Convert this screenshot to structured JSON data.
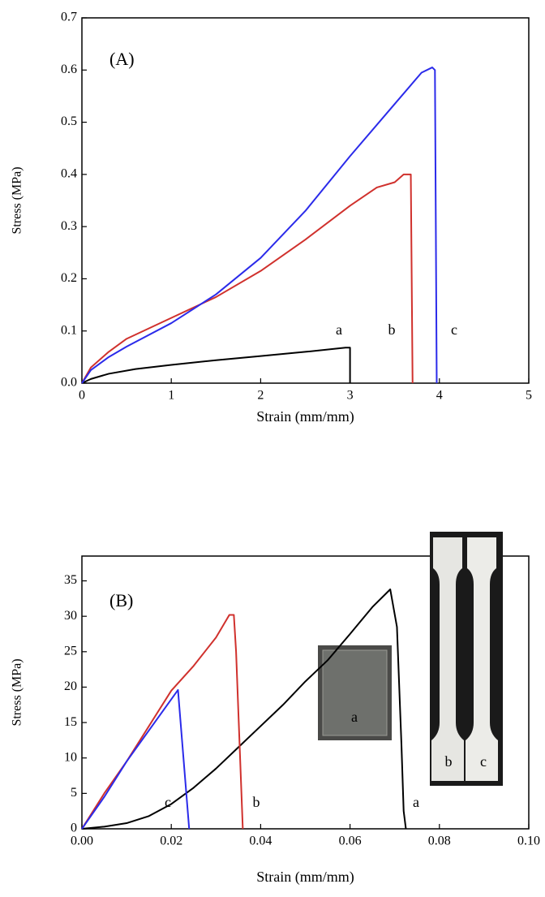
{
  "chart_data": [
    {
      "type": "line",
      "title": "(A)",
      "xlabel": "Strain (mm/mm)",
      "ylabel": "Stress (MPa)",
      "xlim": [
        0,
        5
      ],
      "ylim": [
        0,
        0.7
      ],
      "xticks": [
        0,
        1,
        2,
        3,
        4,
        5
      ],
      "yticks": [
        {
          "value": 0,
          "label": "0.0"
        },
        0.1,
        0.2,
        0.3,
        0.4,
        0.5,
        0.6,
        0.7
      ],
      "series": [
        {
          "name": "a",
          "color": "#000000",
          "x": [
            0,
            0.1,
            0.3,
            0.6,
            1,
            1.5,
            2,
            2.5,
            2.95,
            3.0,
            3.0
          ],
          "values": [
            0,
            0.008,
            0.018,
            0.027,
            0.035,
            0.044,
            0.052,
            0.06,
            0.068,
            0.068,
            0
          ]
        },
        {
          "name": "b",
          "color": "#d0312d",
          "x": [
            0,
            0.1,
            0.3,
            0.5,
            1,
            1.5,
            2,
            2.5,
            3,
            3.3,
            3.5,
            3.6,
            3.68,
            3.7
          ],
          "values": [
            0,
            0.03,
            0.06,
            0.085,
            0.125,
            0.165,
            0.215,
            0.275,
            0.34,
            0.375,
            0.385,
            0.4,
            0.4,
            0
          ]
        },
        {
          "name": "c",
          "color": "#2b2bea",
          "x": [
            0,
            0.1,
            0.3,
            0.5,
            1,
            1.5,
            2,
            2.5,
            3,
            3.5,
            3.8,
            3.92,
            3.95,
            3.97
          ],
          "values": [
            0,
            0.025,
            0.05,
            0.07,
            0.115,
            0.17,
            0.24,
            0.33,
            0.435,
            0.535,
            0.595,
            0.605,
            0.6,
            0
          ]
        }
      ],
      "annotations": [
        {
          "text": "a",
          "color": "#000000"
        },
        {
          "text": "b",
          "color": "#d0312d"
        },
        {
          "text": "c",
          "color": "#2b2bea"
        }
      ]
    },
    {
      "type": "line",
      "title": "(B)",
      "xlabel": "Strain (mm/mm)",
      "ylabel": "Stress (MPa)",
      "xlim": [
        0,
        0.1
      ],
      "ylim": [
        0,
        38.5
      ],
      "xticks": [
        {
          "value": 0,
          "label": "0.00"
        },
        {
          "value": 0.02,
          "label": "0.02"
        },
        {
          "value": 0.04,
          "label": "0.04"
        },
        {
          "value": 0.06,
          "label": "0.06"
        },
        {
          "value": 0.08,
          "label": "0.08"
        },
        {
          "value": 0.1,
          "label": "0.10"
        }
      ],
      "yticks": [
        0,
        5,
        10,
        15,
        20,
        25,
        30,
        35
      ],
      "series": [
        {
          "name": "a",
          "color": "#000000",
          "x": [
            0,
            0.005,
            0.01,
            0.015,
            0.02,
            0.025,
            0.03,
            0.035,
            0.04,
            0.045,
            0.05,
            0.055,
            0.06,
            0.065,
            0.069,
            0.0705,
            0.0715,
            0.072,
            0.0725
          ],
          "values": [
            0,
            0.3,
            0.8,
            1.8,
            3.5,
            5.8,
            8.5,
            11.5,
            14.5,
            17.5,
            20.8,
            23.8,
            27.5,
            31.3,
            33.8,
            28.5,
            12,
            2.5,
            0
          ]
        },
        {
          "name": "b",
          "color": "#d0312d",
          "x": [
            0,
            0.005,
            0.01,
            0.02,
            0.025,
            0.03,
            0.033,
            0.034,
            0.0345,
            0.036
          ],
          "values": [
            0,
            5,
            9.5,
            19.5,
            23,
            27,
            30.2,
            30.2,
            25,
            0
          ]
        },
        {
          "name": "c",
          "color": "#2b2bea",
          "x": [
            0,
            0.005,
            0.01,
            0.0215,
            0.024
          ],
          "values": [
            0,
            4.5,
            9.5,
            19.6,
            0
          ]
        }
      ],
      "annotations": [
        {
          "text": "a",
          "color": "#000000"
        },
        {
          "text": "b",
          "color": "#d0312d"
        },
        {
          "text": "c",
          "color": "#2b2bea"
        }
      ],
      "inset_labels": [
        {
          "text": "a",
          "color": "#ffffff"
        },
        {
          "text": "b",
          "color": "#d0312d"
        },
        {
          "text": "c",
          "color": "#2b2bea"
        }
      ]
    }
  ]
}
